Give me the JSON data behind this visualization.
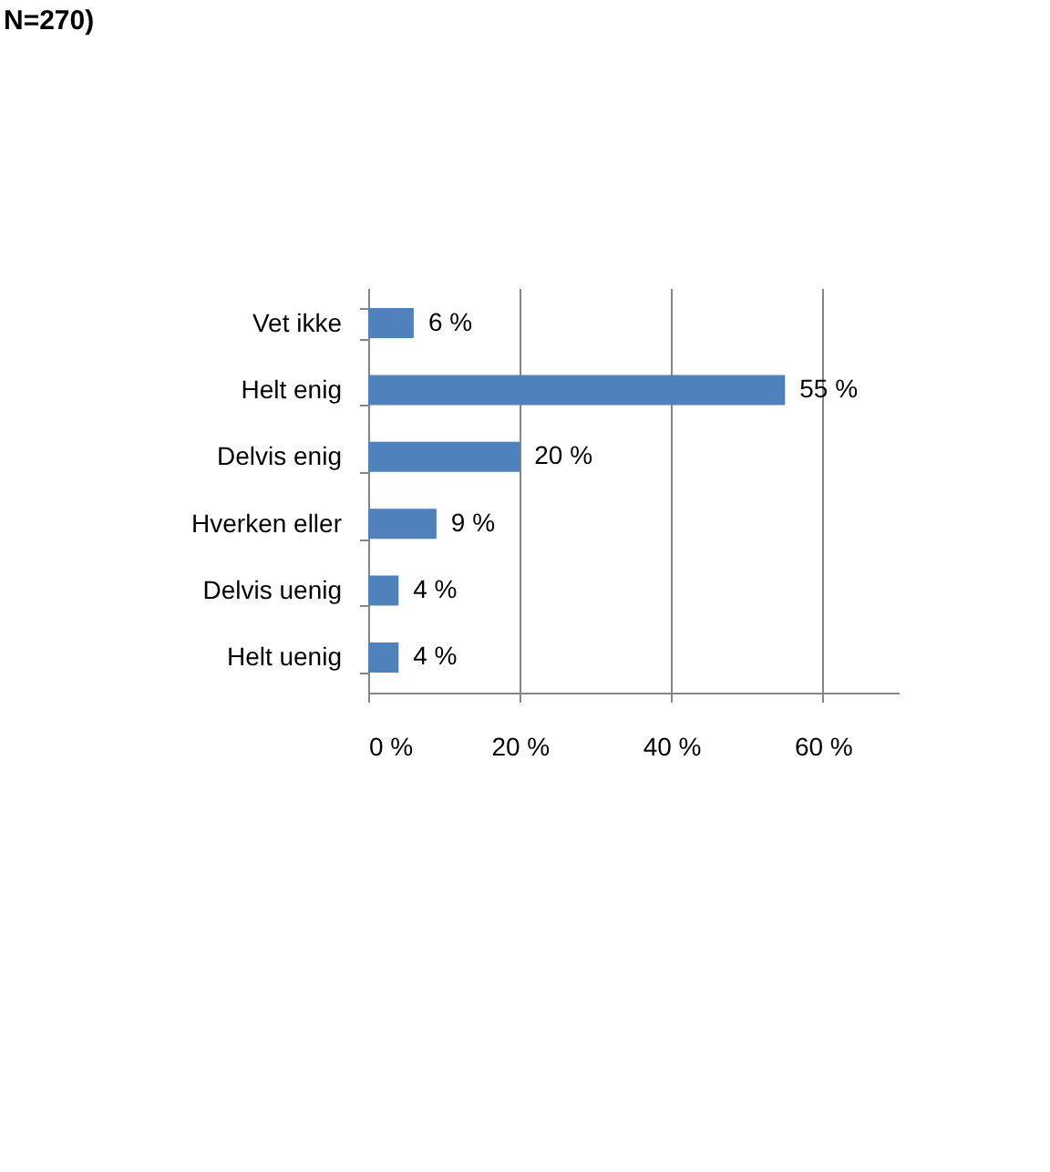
{
  "chart_data": {
    "type": "bar",
    "orientation": "horizontal",
    "title": "N=270)",
    "categories": [
      "Vet ikke",
      "Helt enig",
      "Delvis enig",
      "Hverken eller",
      "Delvis uenig",
      "Helt uenig"
    ],
    "values": [
      6,
      55,
      20,
      9,
      4,
      4
    ],
    "value_labels": [
      "6 %",
      "55 %",
      "20 %",
      "9 %",
      "4 %",
      "4 %"
    ],
    "color": "#4f81bd",
    "xlim": [
      0,
      70
    ],
    "xticks": [
      {
        "value": 0,
        "label": "0 %"
      },
      {
        "value": 20,
        "label": "20 %"
      },
      {
        "value": 40,
        "label": "40 %"
      },
      {
        "value": 60,
        "label": "60 %"
      }
    ],
    "grid": "x"
  }
}
